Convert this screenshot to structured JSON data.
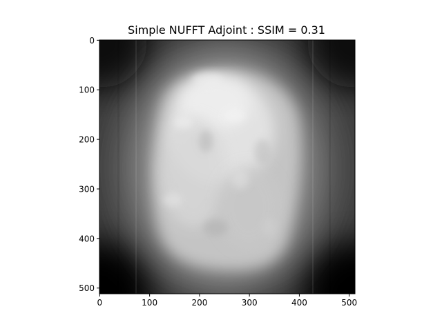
{
  "figure": {
    "title": "Simple NUFFT Adjoint : SSIM = 0.31",
    "image_subject": "grayscale MRI brain reconstruction (blurred)",
    "colormap": "gray"
  },
  "chart_data": {
    "type": "heatmap",
    "title": "Simple NUFFT Adjoint : SSIM = 0.31",
    "xlabel": "",
    "ylabel": "",
    "xlim": [
      -0.5,
      511.5
    ],
    "ylim": [
      511.5,
      -0.5
    ],
    "x_ticks": [
      0,
      100,
      200,
      300,
      400,
      500
    ],
    "y_ticks": [
      0,
      100,
      200,
      300,
      400,
      500
    ],
    "x_tick_labels": [
      "0",
      "100",
      "200",
      "300",
      "400",
      "500"
    ],
    "y_tick_labels": [
      "0",
      "100",
      "200",
      "300",
      "400",
      "500"
    ],
    "grid": false,
    "ssim": 0.31
  }
}
